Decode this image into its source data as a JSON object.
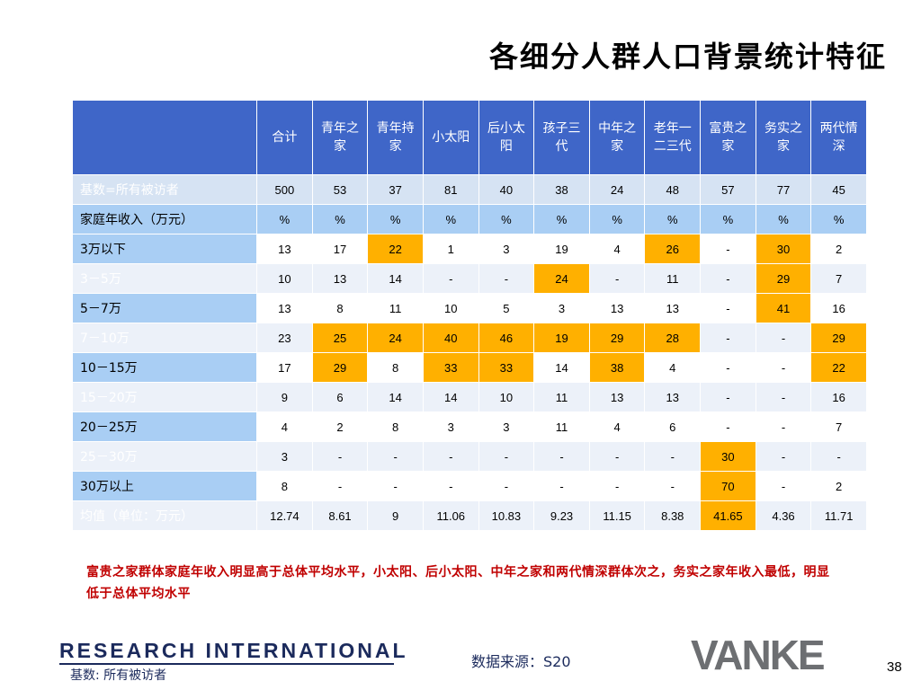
{
  "title": "各细分人群人口背景统计特征",
  "table": {
    "columns": [
      "合计",
      "青年之家",
      "青年持家",
      "小太阳",
      "后小太阳",
      "孩子三代",
      "中年之家",
      "老年一二三代",
      "富贵之家",
      "务实之家",
      "两代情深"
    ],
    "rows": [
      {
        "label": "基数=所有被访者",
        "style": "stripe",
        "cells": [
          {
            "v": "500"
          },
          {
            "v": "53"
          },
          {
            "v": "37"
          },
          {
            "v": "81"
          },
          {
            "v": "40"
          },
          {
            "v": "38"
          },
          {
            "v": "24"
          },
          {
            "v": "48"
          },
          {
            "v": "57"
          },
          {
            "v": "77"
          },
          {
            "v": "45"
          }
        ]
      },
      {
        "label": "家庭年收入（万元）",
        "style": "light",
        "cells": [
          {
            "v": "%"
          },
          {
            "v": "%"
          },
          {
            "v": "%"
          },
          {
            "v": "%"
          },
          {
            "v": "%"
          },
          {
            "v": "%"
          },
          {
            "v": "%"
          },
          {
            "v": "%"
          },
          {
            "v": "%"
          },
          {
            "v": "%"
          },
          {
            "v": "%"
          }
        ]
      },
      {
        "label": "3万以下",
        "style": "white",
        "cells": [
          {
            "v": "13"
          },
          {
            "v": "17"
          },
          {
            "v": "22",
            "h": true
          },
          {
            "v": "1"
          },
          {
            "v": "3"
          },
          {
            "v": "19"
          },
          {
            "v": "4"
          },
          {
            "v": "26",
            "h": true
          },
          {
            "v": "-"
          },
          {
            "v": "30",
            "h": true
          },
          {
            "v": "2"
          }
        ]
      },
      {
        "label": "3－5万",
        "style": "alt",
        "cells": [
          {
            "v": "10"
          },
          {
            "v": "13"
          },
          {
            "v": "14"
          },
          {
            "v": "-"
          },
          {
            "v": "-"
          },
          {
            "v": "24",
            "h": true
          },
          {
            "v": "-"
          },
          {
            "v": "11"
          },
          {
            "v": "-"
          },
          {
            "v": "29",
            "h": true
          },
          {
            "v": "7"
          }
        ]
      },
      {
        "label": "5－7万",
        "style": "white",
        "cells": [
          {
            "v": "13"
          },
          {
            "v": "8"
          },
          {
            "v": "11"
          },
          {
            "v": "10"
          },
          {
            "v": "5"
          },
          {
            "v": "3"
          },
          {
            "v": "13"
          },
          {
            "v": "13"
          },
          {
            "v": "-"
          },
          {
            "v": "41",
            "h": true
          },
          {
            "v": "16"
          }
        ]
      },
      {
        "label": "7－10万",
        "style": "alt",
        "cells": [
          {
            "v": "23"
          },
          {
            "v": "25",
            "h": true
          },
          {
            "v": "24",
            "h": true
          },
          {
            "v": "40",
            "h": true
          },
          {
            "v": "46",
            "h": true
          },
          {
            "v": "19",
            "h": true
          },
          {
            "v": "29",
            "h": true
          },
          {
            "v": "28",
            "h": true
          },
          {
            "v": "-"
          },
          {
            "v": "-"
          },
          {
            "v": "29",
            "h": true
          }
        ]
      },
      {
        "label": "10－15万",
        "style": "white",
        "cells": [
          {
            "v": "17"
          },
          {
            "v": "29",
            "h": true
          },
          {
            "v": "8"
          },
          {
            "v": "33",
            "h": true
          },
          {
            "v": "33",
            "h": true
          },
          {
            "v": "14"
          },
          {
            "v": "38",
            "h": true
          },
          {
            "v": "4"
          },
          {
            "v": "-"
          },
          {
            "v": "-"
          },
          {
            "v": "22",
            "h": true
          }
        ]
      },
      {
        "label": "15－20万",
        "style": "alt",
        "cells": [
          {
            "v": "9"
          },
          {
            "v": "6"
          },
          {
            "v": "14"
          },
          {
            "v": "14"
          },
          {
            "v": "10"
          },
          {
            "v": "11"
          },
          {
            "v": "13"
          },
          {
            "v": "13"
          },
          {
            "v": "-"
          },
          {
            "v": "-"
          },
          {
            "v": "16"
          }
        ]
      },
      {
        "label": "20－25万",
        "style": "white",
        "cells": [
          {
            "v": "4"
          },
          {
            "v": "2"
          },
          {
            "v": "8"
          },
          {
            "v": "3"
          },
          {
            "v": "3"
          },
          {
            "v": "11"
          },
          {
            "v": "4"
          },
          {
            "v": "6"
          },
          {
            "v": "-"
          },
          {
            "v": "-"
          },
          {
            "v": "7"
          }
        ]
      },
      {
        "label": "25－30万",
        "style": "alt",
        "cells": [
          {
            "v": "3"
          },
          {
            "v": "-"
          },
          {
            "v": "-"
          },
          {
            "v": "-"
          },
          {
            "v": "-"
          },
          {
            "v": "-"
          },
          {
            "v": "-"
          },
          {
            "v": "-"
          },
          {
            "v": "30",
            "h": true
          },
          {
            "v": "-"
          },
          {
            "v": "-"
          }
        ]
      },
      {
        "label": "30万以上",
        "style": "white",
        "cells": [
          {
            "v": "8"
          },
          {
            "v": "-"
          },
          {
            "v": "-"
          },
          {
            "v": "-"
          },
          {
            "v": "-"
          },
          {
            "v": "-"
          },
          {
            "v": "-"
          },
          {
            "v": "-"
          },
          {
            "v": "70",
            "h": true
          },
          {
            "v": "-"
          },
          {
            "v": "2"
          }
        ]
      },
      {
        "label": "均值（单位：万元）",
        "style": "alt",
        "cells": [
          {
            "v": "12.74"
          },
          {
            "v": "8.61"
          },
          {
            "v": "9"
          },
          {
            "v": "11.06"
          },
          {
            "v": "10.83"
          },
          {
            "v": "9.23"
          },
          {
            "v": "11.15"
          },
          {
            "v": "8.38"
          },
          {
            "v": "41.65",
            "h": true
          },
          {
            "v": "4.36"
          },
          {
            "v": "11.71"
          }
        ]
      }
    ]
  },
  "note": "富贵之家群体家庭年收入明显高于总体平均水平，小太阳、后小太阳、中年之家和两代情深群体次之，务实之家年收入最低，明显低于总体平均水平",
  "footer": {
    "logo_text": "RESEARCH INTERNATIONAL",
    "base_label": "基数: 所有被访者",
    "source_label": "数据来源：S20",
    "brand": "VANKE",
    "page_number": "38"
  },
  "colors": {
    "header_blue": "#3f66c8",
    "light_blue": "#a9cef4",
    "highlight": "#ffb000",
    "note_red": "#c00000"
  }
}
